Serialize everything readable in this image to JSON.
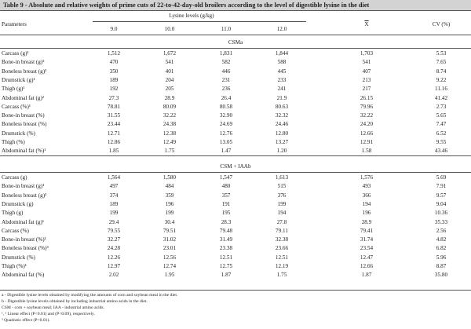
{
  "title": "Table 9 - Absolute and relative weights of prime cuts of 22-to-42-day-old broilers according to the level of digestible lysine in the diet",
  "header": {
    "parameters": "Parameters",
    "lysine_levels": "Lysine levels (g/kg)",
    "levels": [
      "9.0",
      "10.0",
      "11.0",
      "12.0"
    ],
    "mean": "X",
    "cv": "CV (%)"
  },
  "sections": [
    {
      "name": "CSMa",
      "rows": [
        {
          "label": "Carcass (g)¹",
          "values": [
            "1,512",
            "1,672",
            "1,831",
            "1,844"
          ],
          "mean": "1,703",
          "cv": "5.53"
        },
        {
          "label": "Bone-in breast (g)³",
          "values": [
            "470",
            "541",
            "582",
            "588"
          ],
          "mean": "541",
          "cv": "7.65"
        },
        {
          "label": "Boneless breast (g)³",
          "values": [
            "350",
            "401",
            "446",
            "445"
          ],
          "mean": "407",
          "cv": "8.74"
        },
        {
          "label": "Drumstick (g)¹",
          "values": [
            "189",
            "204",
            "231",
            "233"
          ],
          "mean": "213",
          "cv": "9.22"
        },
        {
          "label": "Thigh (g)¹",
          "values": [
            "192",
            "205",
            "236",
            "241"
          ],
          "mean": "217",
          "cv": "11.16"
        },
        {
          "label": "Abdominal fat (g)²",
          "values": [
            "27.3",
            "28.9",
            "26.4",
            "21.9"
          ],
          "mean": "26.15",
          "cv": "41.42"
        },
        {
          "label": "Carcass (%)¹",
          "values": [
            "78.81",
            "80.09",
            "80.58",
            "80.63"
          ],
          "mean": "79.96",
          "cv": "2.73"
        },
        {
          "label": "Bone-in breast (%)",
          "values": [
            "31.55",
            "32.22",
            "32.90",
            "32.32"
          ],
          "mean": "32.22",
          "cv": "5.65"
        },
        {
          "label": "Boneless breast (%)",
          "values": [
            "23.44",
            "24.38",
            "24.69",
            "24.46"
          ],
          "mean": "24.20",
          "cv": "7.47"
        },
        {
          "label": "Drumstick (%)",
          "values": [
            "12.71",
            "12.38",
            "12.76",
            "12.80"
          ],
          "mean": "12.66",
          "cv": "6.52"
        },
        {
          "label": "Thigh (%)",
          "values": [
            "12.86",
            "12.49",
            "13.05",
            "13.27"
          ],
          "mean": "12.91",
          "cv": "9.55"
        },
        {
          "label": "Abdominal fat (%)¹",
          "values": [
            "1.85",
            "1.75",
            "1.47",
            "1.20"
          ],
          "mean": "1.58",
          "cv": "43.46"
        }
      ]
    },
    {
      "name": "CSM + IAAb",
      "rows": [
        {
          "label": "Carcass (g)",
          "values": [
            "1,564",
            "1,580",
            "1,547",
            "1,613"
          ],
          "mean": "1,576",
          "cv": "5.69"
        },
        {
          "label": "Bone-in breast (g)¹",
          "values": [
            "497",
            "484",
            "480",
            "515"
          ],
          "mean": "493",
          "cv": "7.91"
        },
        {
          "label": "Boneless breast (g)³",
          "values": [
            "374",
            "359",
            "357",
            "376"
          ],
          "mean": "366",
          "cv": "9.57"
        },
        {
          "label": "Drumstick (g)",
          "values": [
            "189",
            "196",
            "191",
            "199"
          ],
          "mean": "194",
          "cv": "9.04"
        },
        {
          "label": "Thigh (g)",
          "values": [
            "199",
            "199",
            "195",
            "194"
          ],
          "mean": "196",
          "cv": "10.36"
        },
        {
          "label": "Abdominal fat (g)¹",
          "values": [
            "29.4",
            "30.4",
            "28.3",
            "27.8"
          ],
          "mean": "28.9",
          "cv": "35.33"
        },
        {
          "label": "Carcass (%)",
          "values": [
            "79.55",
            "79.51",
            "79.48",
            "79.11"
          ],
          "mean": "79.41",
          "cv": "2.56"
        },
        {
          "label": "Bone-in breast (%)¹",
          "values": [
            "32.27",
            "31.02",
            "31.49",
            "32.38"
          ],
          "mean": "31.74",
          "cv": "4.82"
        },
        {
          "label": "Boneless breast (%)³",
          "values": [
            "24.28",
            "23.01",
            "23.38",
            "23.66"
          ],
          "mean": "23.54",
          "cv": "6.82"
        },
        {
          "label": "Drumstick (%)",
          "values": [
            "12.26",
            "12.56",
            "12.51",
            "12.51"
          ],
          "mean": "12.47",
          "cv": "5.96"
        },
        {
          "label": "Thigh (%)¹",
          "values": [
            "12.97",
            "12.74",
            "12.75",
            "12.19"
          ],
          "mean": "12.66",
          "cv": "8.87"
        },
        {
          "label": "Abdominal fat (%)",
          "values": [
            "2.02",
            "1.95",
            "1.87",
            "1.75"
          ],
          "mean": "1.87",
          "cv": "35.80"
        }
      ]
    }
  ],
  "footnotes": [
    "a - Digestible lysine levels obtained by modifying the amounts of corn and soybean meal in the diet.",
    "b - Digestible lysine levels obtained by including industrial amino acids in the diet.",
    "CSM - corn + soybean meal; IAA - industrial amino acids.",
    "¹, ² Linear effect (P<0.01) and (P<0.09), respectively.",
    "³ Quadratic effect (P<0.01)."
  ]
}
